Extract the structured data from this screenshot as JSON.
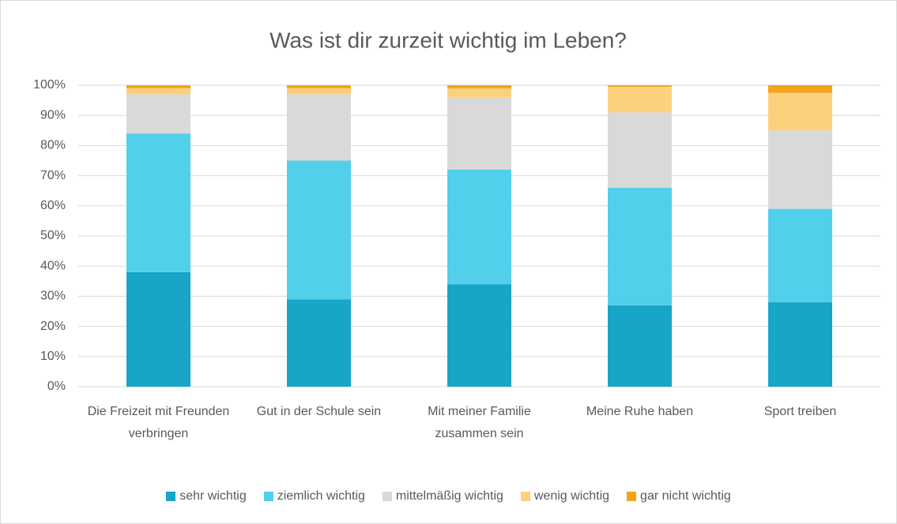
{
  "chart_data": {
    "type": "stacked_bar",
    "title": "Was ist dir zurzeit wichtig im Leben?",
    "categories": [
      "Die Freizeit mit Freunden verbringen",
      "Gut in der Schule sein",
      "Mit meiner Familie zusammen sein",
      "Meine Ruhe haben",
      "Sport treiben"
    ],
    "series": [
      {
        "name": "sehr wichtig",
        "color": "#17a5c8",
        "values": [
          38,
          29,
          34,
          27,
          28
        ]
      },
      {
        "name": "ziemlich wichtig",
        "color": "#52cfea",
        "values": [
          46,
          46,
          38,
          39,
          31
        ]
      },
      {
        "name": "mittelmäßig wichtig",
        "color": "#d9d9d9",
        "values": [
          13,
          22,
          24,
          25,
          26
        ]
      },
      {
        "name": "wenig wichtig",
        "color": "#fcd17d",
        "values": [
          2,
          2,
          3,
          8.5,
          12.5
        ]
      },
      {
        "name": "gar nicht wichtig",
        "color": "#f4a31b",
        "values": [
          1,
          1,
          1,
          0.5,
          2.5
        ]
      }
    ],
    "ylim": [
      0,
      100
    ],
    "yticks": [
      {
        "value": 0,
        "label": "0%"
      },
      {
        "value": 10,
        "label": "10%"
      },
      {
        "value": 20,
        "label": "20%"
      },
      {
        "value": 30,
        "label": "30%"
      },
      {
        "value": 40,
        "label": "40%"
      },
      {
        "value": 50,
        "label": "50%"
      },
      {
        "value": 60,
        "label": "60%"
      },
      {
        "value": 70,
        "label": "70%"
      },
      {
        "value": 80,
        "label": "80%"
      },
      {
        "value": 90,
        "label": "90%"
      },
      {
        "value": 100,
        "label": "100%"
      }
    ],
    "grid": true,
    "legend": "bottom"
  }
}
